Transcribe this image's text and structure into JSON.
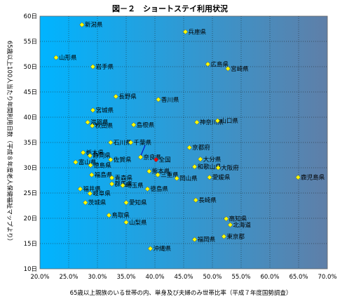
{
  "chart_data": {
    "type": "scatter",
    "title": "図－２　ショートステイ利用状況",
    "xlabel": "65歳以上親族のいる世帯の内、単身及び夫婦のみ世帯比率（平成７年度国勢調査）",
    "ylabel": "65歳以上100人当たり年間利用日数（平成８年度老人保健福祉マップより）",
    "xlim": [
      20.0,
      70.0
    ],
    "ylim": [
      10,
      60
    ],
    "x_ticks": [
      "20.0%",
      "25.0%",
      "30.0%",
      "35.0%",
      "40.0%",
      "45.0%",
      "50.0%",
      "55.0%",
      "60.0%",
      "65.0%",
      "70.0%"
    ],
    "y_ticks": [
      "10日",
      "15日",
      "20日",
      "25日",
      "30日",
      "35日",
      "40日",
      "45日",
      "50日",
      "55日",
      "60日"
    ],
    "grid": true,
    "background_gradient": [
      "#00b4ff",
      "#5f7fa8"
    ],
    "marker_color": "#ffff00",
    "highlight_color": "#ff0000",
    "points": [
      {
        "name": "新潟県",
        "x": 27.3,
        "y": 58.3
      },
      {
        "name": "兵庫県",
        "x": 45.3,
        "y": 56.9
      },
      {
        "name": "山形県",
        "x": 22.8,
        "y": 51.8
      },
      {
        "name": "岩手県",
        "x": 29.2,
        "y": 50.0
      },
      {
        "name": "広島県",
        "x": 49.2,
        "y": 50.5
      },
      {
        "name": "宮崎県",
        "x": 52.7,
        "y": 49.6
      },
      {
        "name": "長野県",
        "x": 33.2,
        "y": 44.1
      },
      {
        "name": "香川県",
        "x": 40.6,
        "y": 43.5
      },
      {
        "name": "宮城県",
        "x": 29.2,
        "y": 41.4
      },
      {
        "name": "神奈川県",
        "x": 47.3,
        "y": 39.0
      },
      {
        "name": "滋賀県",
        "x": 28.3,
        "y": 39.0
      },
      {
        "name": "秋田県",
        "x": 29.1,
        "y": 38.3
      },
      {
        "name": "島根県",
        "x": 36.3,
        "y": 38.5
      },
      {
        "name": "山口県",
        "x": 50.9,
        "y": 39.3
      },
      {
        "name": "石川県",
        "x": 32.3,
        "y": 35.0
      },
      {
        "name": "千葉県",
        "x": 35.8,
        "y": 35.0
      },
      {
        "name": "京都府",
        "x": 46.0,
        "y": 34.0
      },
      {
        "name": "栃木県",
        "x": 27.5,
        "y": 33.0
      },
      {
        "name": "静岡県",
        "x": 28.7,
        "y": 32.4
      },
      {
        "name": "佐賀県",
        "x": 32.3,
        "y": 31.6
      },
      {
        "name": "奈良県",
        "x": 37.5,
        "y": 32.1
      },
      {
        "name": "全国",
        "x": 40.2,
        "y": 31.6,
        "highlight": true
      },
      {
        "name": "大分県",
        "x": 47.9,
        "y": 31.7
      },
      {
        "name": "富山県",
        "x": 26.2,
        "y": 31.1
      },
      {
        "name": "徳島県",
        "x": 28.8,
        "y": 30.5
      },
      {
        "name": "和歌山県",
        "x": 46.9,
        "y": 30.2
      },
      {
        "name": "大阪府",
        "x": 51.0,
        "y": 30.0
      },
      {
        "name": "福島県",
        "x": 29.0,
        "y": 28.6
      },
      {
        "name": "青森県",
        "x": 32.5,
        "y": 28.0
      },
      {
        "name": "熊本県",
        "x": 39.0,
        "y": 29.3
      },
      {
        "name": "三重県",
        "x": 40.5,
        "y": 28.6
      },
      {
        "name": "岡山県",
        "x": 43.8,
        "y": 27.9
      },
      {
        "name": "愛媛県",
        "x": 49.5,
        "y": 28.1
      },
      {
        "name": "鹿児島県",
        "x": 64.9,
        "y": 28.1
      },
      {
        "name": "福井県",
        "x": 27.0,
        "y": 25.8
      },
      {
        "name": "群馬県",
        "x": 32.5,
        "y": 26.8
      },
      {
        "name": "埼玉県",
        "x": 34.4,
        "y": 26.5
      },
      {
        "name": "岐阜県",
        "x": 28.7,
        "y": 24.9
      },
      {
        "name": "徳島県",
        "x": 38.7,
        "y": 25.8
      },
      {
        "name": "長崎県",
        "x": 47.1,
        "y": 23.6
      },
      {
        "name": "茨城県",
        "x": 27.9,
        "y": 23.1
      },
      {
        "name": "愛知県",
        "x": 35.0,
        "y": 23.1
      },
      {
        "name": "高知県",
        "x": 52.4,
        "y": 19.9
      },
      {
        "name": "鳥取県",
        "x": 32.0,
        "y": 20.6
      },
      {
        "name": "北海道",
        "x": 53.1,
        "y": 18.7
      },
      {
        "name": "山梨県",
        "x": 35.0,
        "y": 19.2
      },
      {
        "name": "東京都",
        "x": 52.0,
        "y": 16.4
      },
      {
        "name": "福岡県",
        "x": 46.9,
        "y": 15.8
      },
      {
        "name": "沖縄県",
        "x": 39.2,
        "y": 14.0
      }
    ]
  }
}
